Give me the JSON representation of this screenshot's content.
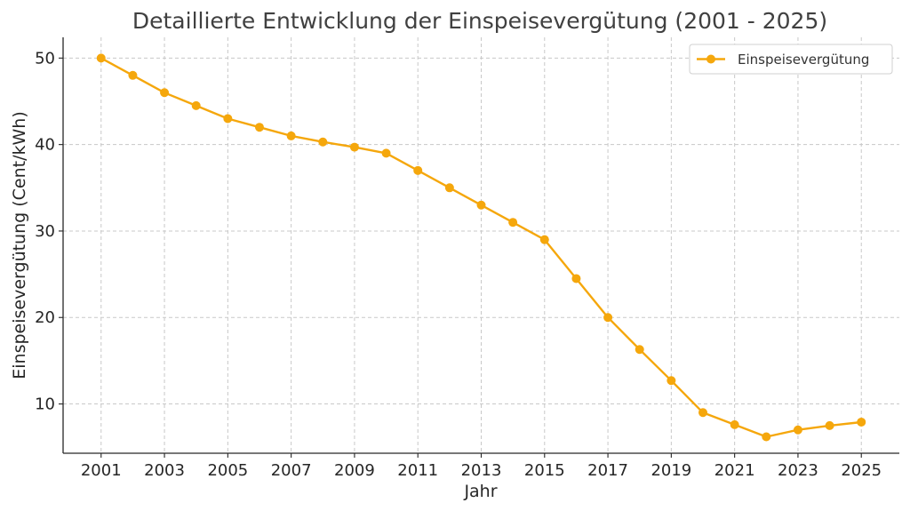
{
  "chart_data": {
    "type": "line",
    "title": "Detaillierte Entwicklung der Einspeisevergütung (2001 - 2025)",
    "xlabel": "Jahr",
    "ylabel": "Einspeisevergütung (Cent/kWh)",
    "x": [
      2001,
      2002,
      2003,
      2004,
      2005,
      2006,
      2007,
      2008,
      2009,
      2010,
      2011,
      2012,
      2013,
      2014,
      2015,
      2016,
      2017,
      2018,
      2019,
      2020,
      2021,
      2022,
      2023,
      2024,
      2025
    ],
    "series": [
      {
        "name": "Einspeisevergütung",
        "color": "#F5A70C",
        "values": [
          50.0,
          48.0,
          46.0,
          44.5,
          43.0,
          42.0,
          41.0,
          40.3,
          39.7,
          39.0,
          37.0,
          35.0,
          33.0,
          31.0,
          29.0,
          24.5,
          20.0,
          16.3,
          12.7,
          9.0,
          7.6,
          6.2,
          7.0,
          7.5,
          7.9
        ]
      }
    ],
    "xticks": [
      "2001",
      "2003",
      "2005",
      "2007",
      "2009",
      "2011",
      "2013",
      "2015",
      "2017",
      "2019",
      "2021",
      "2023",
      "2025"
    ],
    "yticks": [
      "10",
      "20",
      "30",
      "40",
      "50"
    ],
    "xlim": [
      1999.8,
      2026.2
    ],
    "ylim": [
      4.3,
      52.4
    ],
    "grid": true,
    "legend_position": "top-right"
  }
}
